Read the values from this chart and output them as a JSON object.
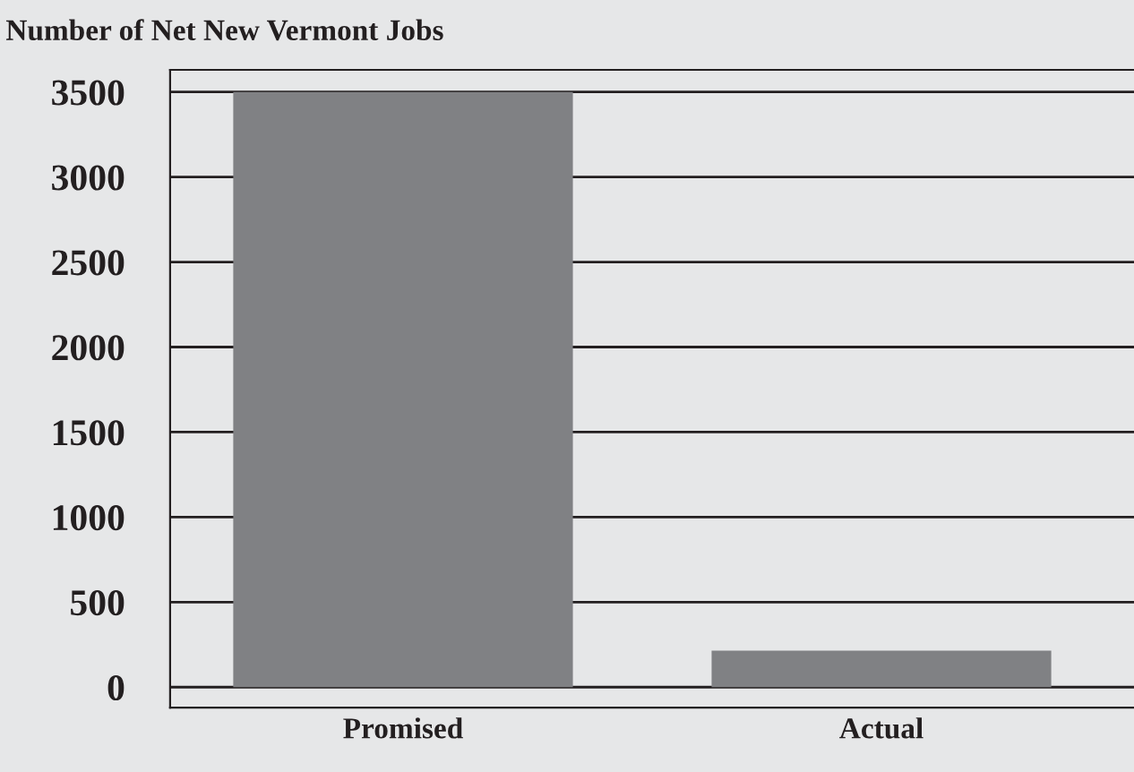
{
  "chart_data": {
    "type": "bar",
    "title": "Number of Net New Vermont Jobs",
    "categories": [
      "Promised",
      "Actual"
    ],
    "values": [
      3500,
      215
    ],
    "color": "#808184",
    "ylim": [
      -120,
      3630
    ],
    "yticks": [
      0,
      500,
      1000,
      1500,
      2000,
      2500,
      3000,
      3500
    ],
    "grid": "y",
    "legend": false
  }
}
